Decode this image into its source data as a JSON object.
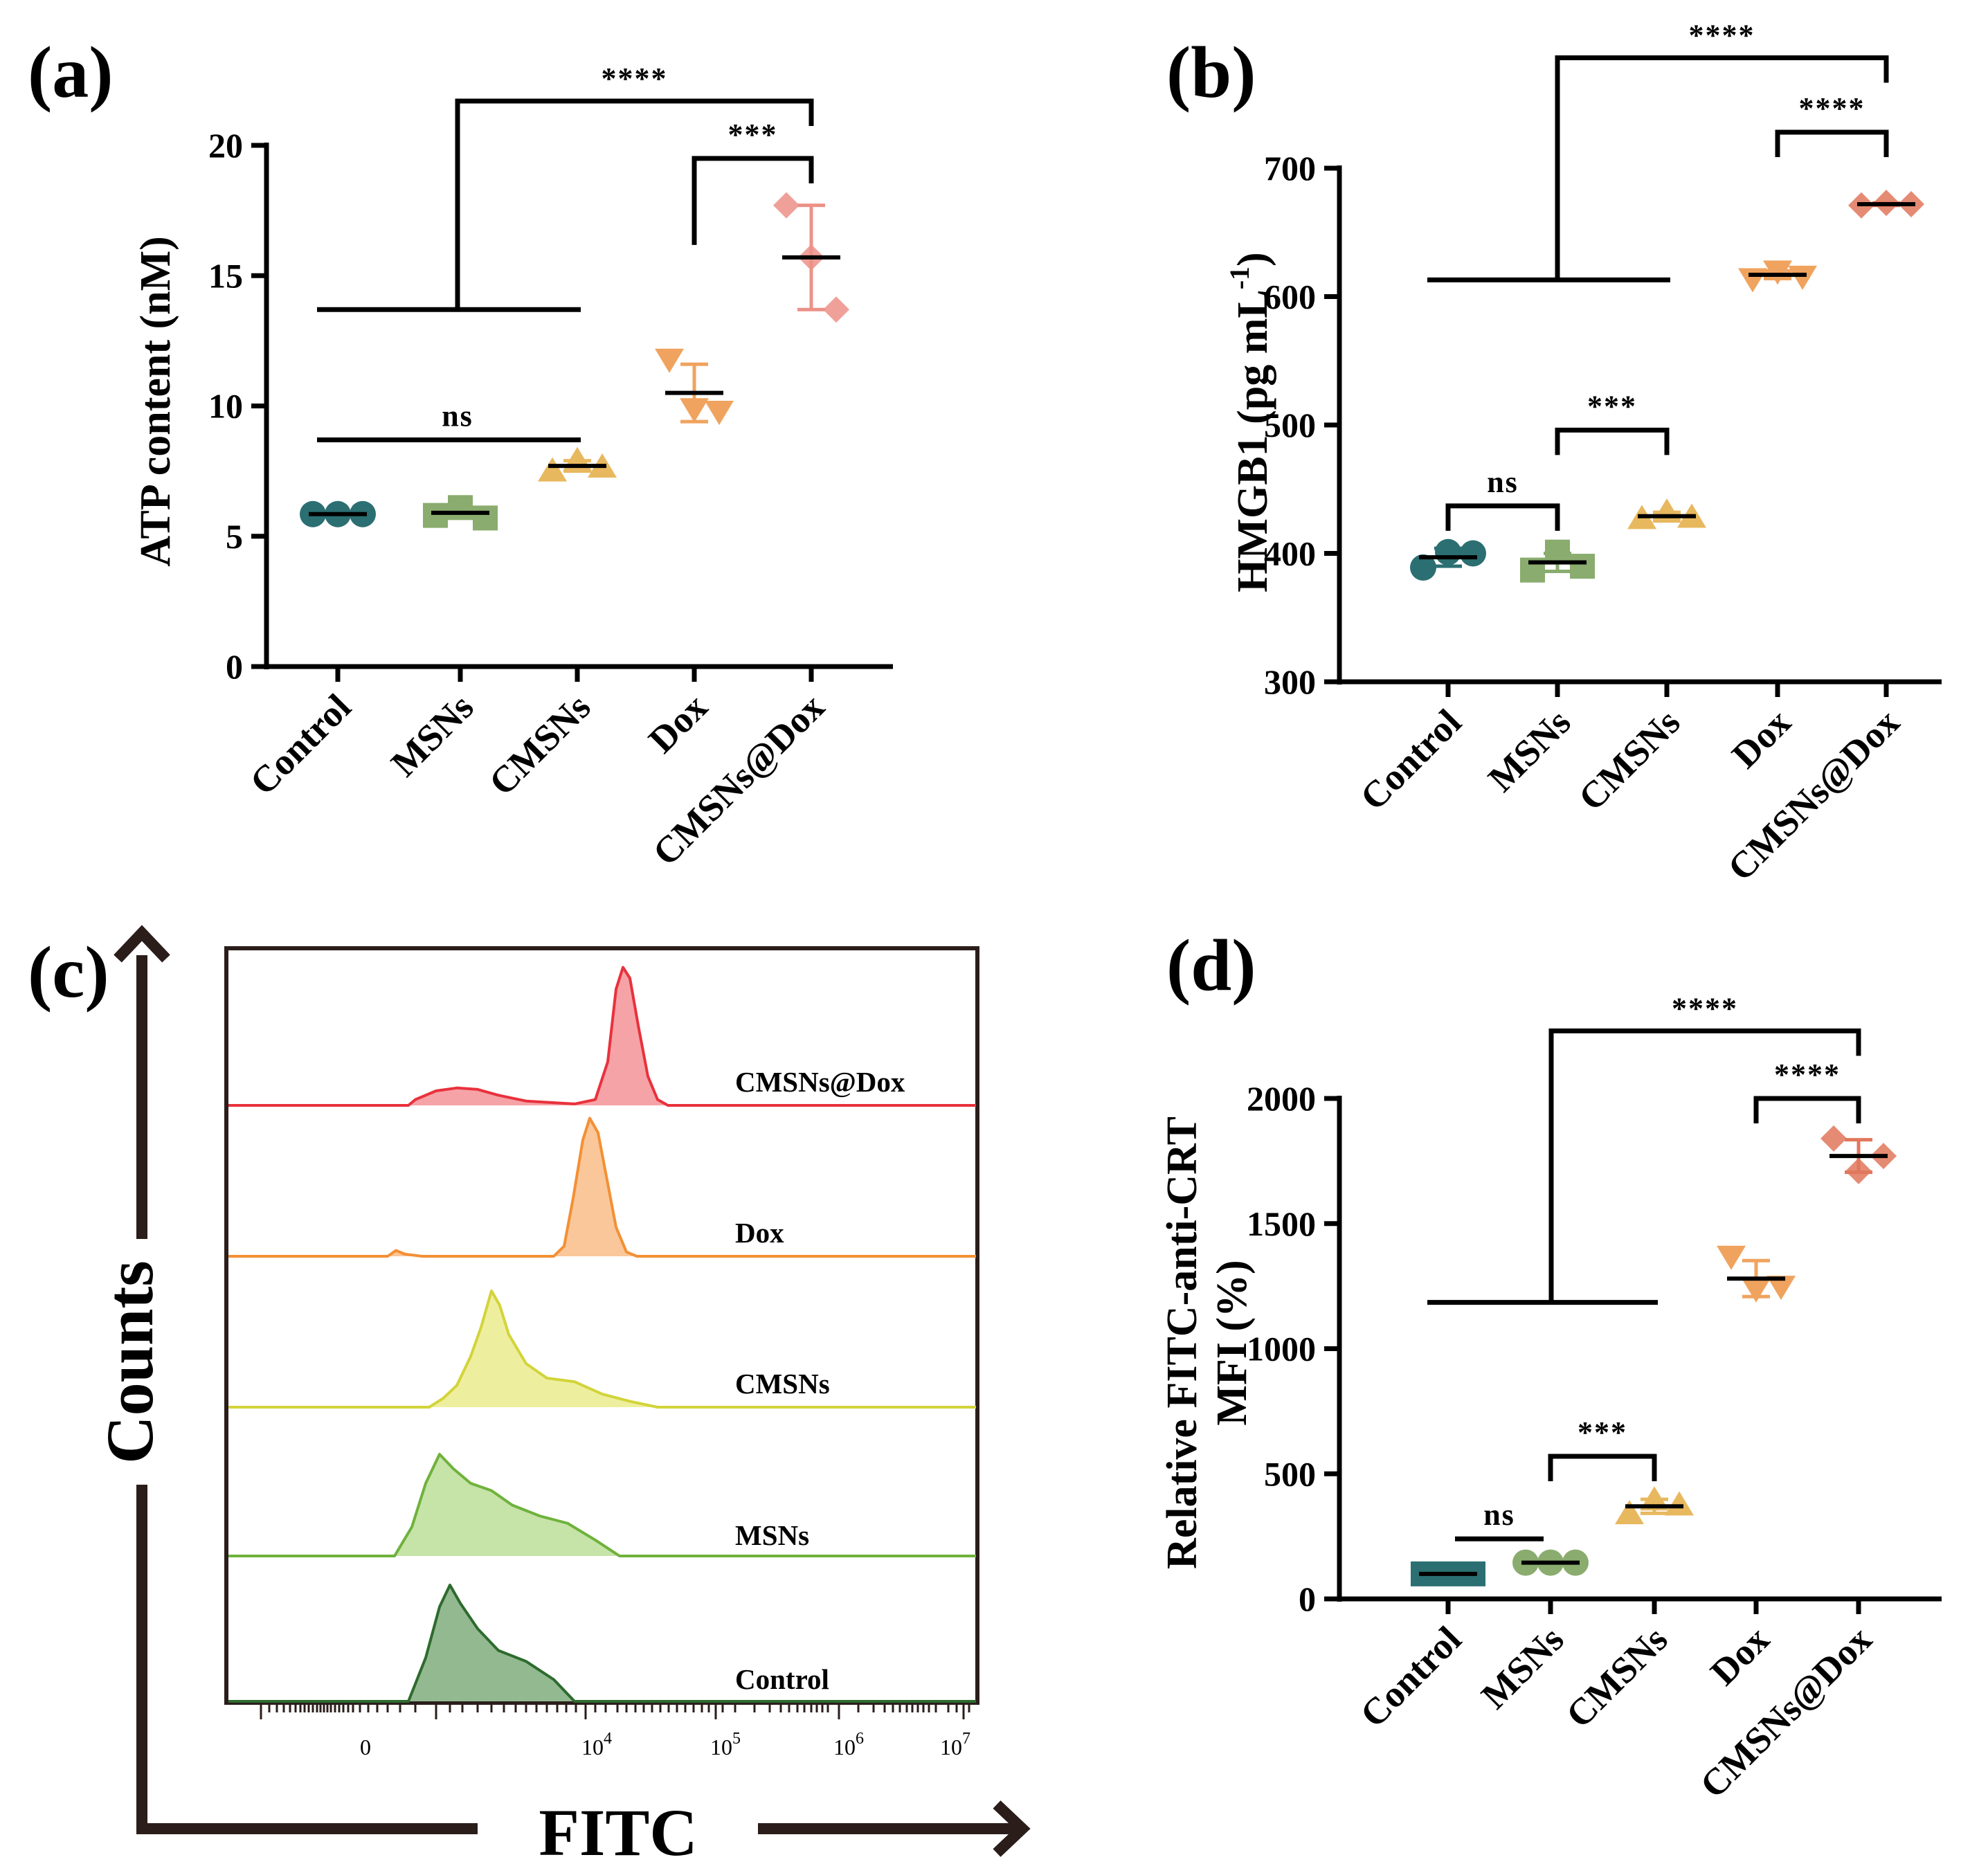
{
  "chart_data": [
    {
      "panel": "(a)",
      "type": "scatter",
      "ylabel": "ATP content (nM)",
      "categories": [
        "Control",
        "MSNs",
        "CMSNs",
        "Dox",
        "CMSNs@Dox"
      ],
      "ylim": [
        0,
        20
      ],
      "yticks": [
        0,
        5,
        10,
        15,
        20
      ],
      "points": [
        [
          5.85,
          5.85,
          5.85
        ],
        [
          5.8,
          6.1,
          5.7
        ],
        [
          7.5,
          7.9,
          7.65
        ],
        [
          11.8,
          9.9,
          9.8
        ],
        [
          17.7,
          15.7,
          13.7
        ]
      ],
      "means": [
        5.85,
        5.9,
        7.7,
        10.5,
        15.7
      ],
      "errors": [
        0.05,
        0.2,
        0.2,
        1.1,
        2.0
      ],
      "colors": [
        "#2b6f72",
        "#8aac6e",
        "#e8b85f",
        "#f0a35e",
        "#ec9187"
      ],
      "markers": [
        "circle",
        "square",
        "triangle-up",
        "triangle-down",
        "diamond"
      ],
      "annotations": [
        {
          "label": "ns",
          "groups": [
            "Control",
            "CMSNs"
          ],
          "y": 8.7
        },
        {
          "label": "***",
          "groups": [
            "Dox",
            "CMSNs@Dox"
          ],
          "y": 19.5
        },
        {
          "label": "****",
          "groups": [
            "Control-CMSNs",
            "CMSNs@Dox"
          ],
          "y": 21.7,
          "bracket_y": 13.7
        }
      ]
    },
    {
      "panel": "(b)",
      "type": "scatter",
      "ylabel_main": "HMGB1 (pg mL",
      "ylabel_sup": "-1",
      "ylabel_end": ")",
      "categories": [
        "Control",
        "MSNs",
        "CMSNs",
        "Dox",
        "CMSNs@Dox"
      ],
      "ylim": [
        300,
        700
      ],
      "yticks": [
        300,
        400,
        500,
        600,
        700
      ],
      "points": [
        [
          389,
          401,
          400
        ],
        [
          387,
          401,
          390
        ],
        [
          427,
          432,
          428
        ],
        [
          614,
          620,
          616
        ],
        [
          671,
          673,
          672
        ]
      ],
      "means": [
        397,
        393,
        429,
        617,
        672
      ],
      "errors": [
        7,
        7,
        3,
        3,
        1
      ],
      "colors": [
        "#2b6f72",
        "#8aac6e",
        "#e8b85f",
        "#f0a35e",
        "#e0775c"
      ],
      "markers": [
        "circle",
        "square",
        "triangle-up",
        "triangle-down",
        "diamond"
      ],
      "annotations": [
        {
          "label": "ns",
          "groups": [
            "Control",
            "MSNs"
          ],
          "y": 437
        },
        {
          "label": "***",
          "groups": [
            "MSNs",
            "CMSNs"
          ],
          "y": 496
        },
        {
          "label": "****",
          "groups": [
            "Dox",
            "CMSNs@Dox"
          ],
          "y": 728
        },
        {
          "label": "****",
          "groups": [
            "Control-CMSNs",
            "CMSNs@Dox"
          ],
          "y": 786,
          "bracket_y": 613
        }
      ]
    },
    {
      "panel": "(c)",
      "type": "histogram-overlay",
      "xlabel": "FITC",
      "ylabel": "Counts",
      "x_ticks": [
        {
          "base": "0",
          "exp": ""
        },
        {
          "base": "10",
          "exp": "4"
        },
        {
          "base": "10",
          "exp": "5"
        },
        {
          "base": "10",
          "exp": "6"
        },
        {
          "base": "10",
          "exp": "7"
        }
      ],
      "series": [
        {
          "name": "CMSNs@Dox",
          "color": "#e8323c",
          "fill": "#f6a3a7"
        },
        {
          "name": "Dox",
          "color": "#f39035",
          "fill": "#f9c79a"
        },
        {
          "name": "CMSNs",
          "color": "#d2d43a",
          "fill": "#eeef9e"
        },
        {
          "name": "MSNs",
          "color": "#6fb23c",
          "fill": "#c6e3a8"
        },
        {
          "name": "Control",
          "color": "#2e6b2e",
          "fill": "#93b991"
        }
      ]
    },
    {
      "panel": "(d)",
      "type": "scatter",
      "ylabel_line1": "Relative FITC-anti-CRT",
      "ylabel_line2": "MFI (%)",
      "categories": [
        "Control",
        "MSNs",
        "CMSNs",
        "Dox",
        "CMSNs@Dox"
      ],
      "ylim": [
        0,
        2000
      ],
      "yticks": [
        0,
        500,
        1000,
        1500,
        2000
      ],
      "points": [
        [
          100,
          100,
          100
        ],
        [
          145,
          145,
          145
        ],
        [
          340,
          395,
          375
        ],
        [
          1370,
          1240,
          1250
        ],
        [
          1840,
          1710,
          1770
        ]
      ],
      "means": [
        100,
        145,
        370,
        1280,
        1770
      ],
      "errors": [
        3,
        3,
        28,
        72,
        65
      ],
      "colors": [
        "#2b6f72",
        "#8aac6e",
        "#e8b85f",
        "#f0a35e",
        "#e0775c"
      ],
      "markers": [
        "square",
        "circle",
        "triangle-up",
        "triangle-down",
        "diamond"
      ],
      "annotations": [
        {
          "label": "ns",
          "groups": [
            "Control",
            "MSNs"
          ],
          "y": 240
        },
        {
          "label": "***",
          "groups": [
            "MSNs",
            "CMSNs"
          ],
          "y": 570
        },
        {
          "label": "****",
          "groups": [
            "Dox",
            "CMSNs@Dox"
          ],
          "y": 2000
        },
        {
          "label": "****",
          "groups": [
            "Control-CMSNs",
            "CMSNs@Dox"
          ],
          "y": 2270,
          "bracket_y": 1185
        }
      ]
    }
  ]
}
